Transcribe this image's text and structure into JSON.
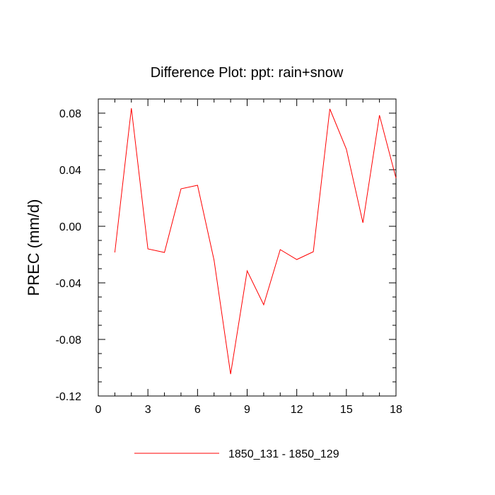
{
  "chart_data": {
    "type": "line",
    "title": "Difference Plot: ppt: rain+snow",
    "xlabel": "",
    "ylabel": "PREC  (mm/d)",
    "xlim": [
      0,
      18
    ],
    "ylim": [
      -0.12,
      0.09
    ],
    "x_ticks": [
      0,
      3,
      6,
      9,
      12,
      15,
      18
    ],
    "x_tick_labels": [
      "0",
      "3",
      "6",
      "9",
      "12",
      "15",
      "18"
    ],
    "y_ticks": [
      -0.12,
      -0.08,
      -0.04,
      0.0,
      0.04,
      0.08
    ],
    "y_tick_labels": [
      "-0.12",
      "-0.08",
      "-0.04",
      "0.00",
      "0.04",
      "0.08"
    ],
    "grid": false,
    "legend_position": "bottom-center",
    "series": [
      {
        "name": "1850_131 - 1850_129",
        "color": "#ff0000",
        "x": [
          1,
          2,
          3,
          4,
          5,
          6,
          7,
          8,
          9,
          10,
          11,
          12,
          13,
          14,
          15,
          16,
          17,
          18
        ],
        "y": [
          -0.0185,
          0.0835,
          -0.016,
          -0.0185,
          0.0265,
          0.029,
          -0.024,
          -0.1045,
          -0.0315,
          -0.0555,
          -0.0165,
          -0.0235,
          -0.018,
          0.083,
          0.0545,
          0.0025,
          0.0785,
          0.034
        ]
      }
    ]
  }
}
